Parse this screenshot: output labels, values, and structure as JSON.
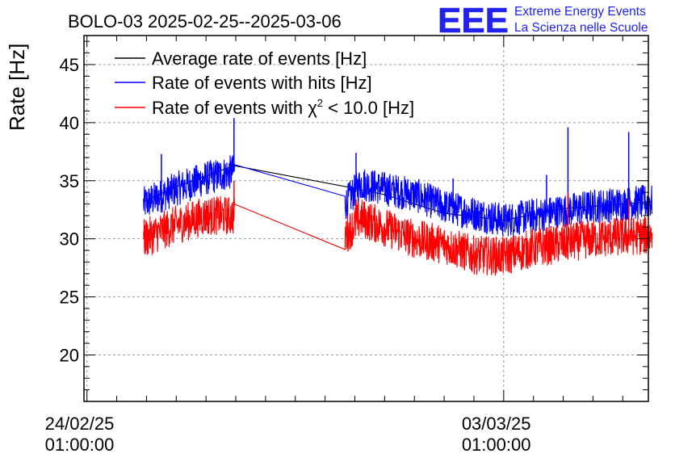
{
  "chart_data": {
    "type": "line",
    "title": "BOLO-03 2025-02-25--2025-03-06",
    "xlabel": "",
    "ylabel": "Rate [Hz]",
    "ylim": [
      16,
      47.5
    ],
    "xlim_days": [
      -0.05,
      9.43
    ],
    "grid": true,
    "legend_position": "top-left",
    "x_ticks": [
      {
        "date": "24/02/25",
        "time": "01:00:00",
        "day": 0
      },
      {
        "date": "03/03/25",
        "time": "01:00:00",
        "day": 7
      }
    ],
    "y_ticks": [
      20,
      25,
      30,
      35,
      40,
      45
    ],
    "gap_interval_days": [
      2.48,
      4.33
    ],
    "series": [
      {
        "name": "Average rate of events [Hz]",
        "color": "#000000",
        "points": [
          [
            0.95,
            33.2
          ],
          [
            1.5,
            34.5
          ],
          [
            2.0,
            35.4
          ],
          [
            2.47,
            36.3
          ],
          [
            4.34,
            34.5
          ],
          [
            5.0,
            33.8
          ],
          [
            6.0,
            32.2
          ],
          [
            7.0,
            31.6
          ],
          [
            8.0,
            32.6
          ],
          [
            9.0,
            33.0
          ],
          [
            9.5,
            33.2
          ]
        ]
      },
      {
        "name": "Rate of events with hits [Hz]",
        "color": "#0000ff",
        "points": [
          [
            0.95,
            33.0
          ],
          [
            1.5,
            34.3
          ],
          [
            2.0,
            35.2
          ],
          [
            2.47,
            35.8
          ],
          [
            4.34,
            33.0
          ],
          [
            4.6,
            34.8
          ],
          [
            5.0,
            34.3
          ],
          [
            5.5,
            33.8
          ],
          [
            6.0,
            32.8
          ],
          [
            6.5,
            32.2
          ],
          [
            7.0,
            31.6
          ],
          [
            7.5,
            32.0
          ],
          [
            8.0,
            32.4
          ],
          [
            8.5,
            32.8
          ],
          [
            9.0,
            33.0
          ],
          [
            9.5,
            33.2
          ]
        ],
        "spikes": [
          [
            2.47,
            40.4
          ],
          [
            1.25,
            37.3
          ],
          [
            4.52,
            37.4
          ],
          [
            8.08,
            39.6
          ],
          [
            9.1,
            39.2
          ],
          [
            6.15,
            35.2
          ],
          [
            7.72,
            35.5
          ]
        ]
      },
      {
        "name": "Rate of events with χ² < 10.0 [Hz]",
        "color": "#ff0000",
        "points": [
          [
            0.95,
            30.0
          ],
          [
            1.5,
            31.2
          ],
          [
            2.0,
            32.0
          ],
          [
            2.47,
            32.0
          ],
          [
            4.34,
            30.3
          ],
          [
            4.6,
            31.8
          ],
          [
            5.0,
            31.0
          ],
          [
            5.5,
            30.0
          ],
          [
            6.0,
            29.5
          ],
          [
            6.5,
            28.6
          ],
          [
            7.0,
            28.5
          ],
          [
            7.5,
            29.2
          ],
          [
            8.0,
            29.6
          ],
          [
            8.5,
            30.0
          ],
          [
            9.0,
            30.2
          ],
          [
            9.5,
            30.3
          ]
        ],
        "spikes": [
          [
            2.47,
            35.0
          ],
          [
            4.52,
            33.4
          ],
          [
            8.08,
            34.0
          ],
          [
            9.1,
            33.4
          ]
        ]
      }
    ],
    "legend_label_parts": {
      "prefix": "Rate of events with ",
      "symbol": "χ",
      "superscript": "2",
      "suffix": " < 10.0 [Hz]"
    }
  },
  "logo": {
    "mark": "EEE",
    "line1": "Extreme Energy Events",
    "line2": "La Scienza nelle Scuole",
    "color": "#2222ee"
  }
}
